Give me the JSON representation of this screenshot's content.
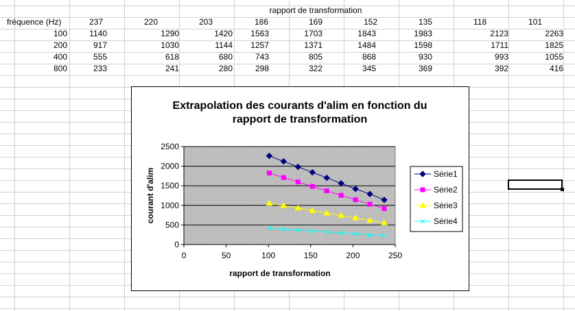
{
  "table": {
    "header_title": "rapport de transformation",
    "row_header": "fréquence (Hz)",
    "columns": [
      "237",
      "220",
      "203",
      "186",
      "169",
      "152",
      "135",
      "118",
      "101"
    ],
    "rows": [
      {
        "label": "100",
        "values": [
          "1140",
          "1290",
          "1420",
          "1563",
          "1703",
          "1843",
          "1983",
          "2123",
          "2263"
        ]
      },
      {
        "label": "200",
        "values": [
          "917",
          "1030",
          "1144",
          "1257",
          "1371",
          "1484",
          "1598",
          "1711",
          "1825"
        ]
      },
      {
        "label": "400",
        "values": [
          "555",
          "618",
          "680",
          "743",
          "805",
          "868",
          "930",
          "993",
          "1055"
        ]
      },
      {
        "label": "800",
        "values": [
          "233",
          "241",
          "280",
          "298",
          "322",
          "345",
          "369",
          "392",
          "416"
        ]
      }
    ]
  },
  "chart_data": {
    "type": "line",
    "title_line1": "Extrapolation des courants d'alim en fonction du",
    "title_line2": "rapport de transformation",
    "xlabel": "rapport de transformation",
    "ylabel": "courant d'alim",
    "xlim": [
      0,
      250
    ],
    "ylim": [
      0,
      2500
    ],
    "xticks": [
      0,
      50,
      100,
      150,
      200,
      250
    ],
    "yticks": [
      0,
      500,
      1000,
      1500,
      2000,
      2500
    ],
    "grid": "horizontal",
    "legend_position": "right",
    "x": [
      237,
      220,
      203,
      186,
      169,
      152,
      135,
      118,
      101
    ],
    "series": [
      {
        "name": "Série1",
        "values": [
          1140,
          1290,
          1420,
          1563,
          1703,
          1843,
          1983,
          2123,
          2263
        ],
        "color": "#000080",
        "marker": "diamond"
      },
      {
        "name": "Série2",
        "values": [
          917,
          1030,
          1144,
          1257,
          1371,
          1484,
          1598,
          1711,
          1825
        ],
        "color": "#ff00ff",
        "marker": "square"
      },
      {
        "name": "Série3",
        "values": [
          555,
          618,
          680,
          743,
          805,
          868,
          930,
          993,
          1055
        ],
        "color": "#ffff00",
        "marker": "triangle"
      },
      {
        "name": "Série4",
        "values": [
          233,
          241,
          280,
          298,
          322,
          345,
          369,
          392,
          416
        ],
        "color": "#00ffff",
        "marker": "x"
      }
    ]
  }
}
